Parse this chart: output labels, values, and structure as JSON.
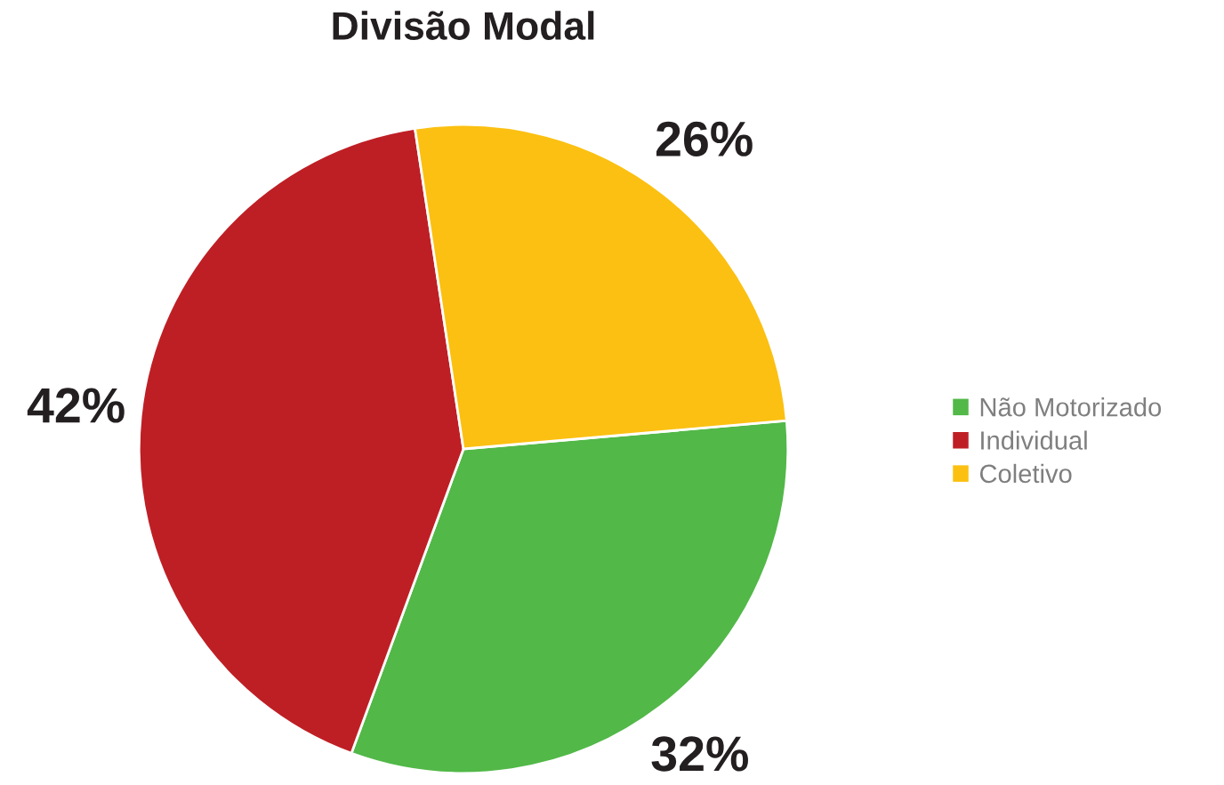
{
  "chart_data": {
    "type": "pie",
    "title": "Divisão Modal",
    "categories": [
      "Não Motorizado",
      "Individual",
      "Coletivo"
    ],
    "values": [
      32,
      42,
      26
    ],
    "colors": [
      "#52b848",
      "#be1f25",
      "#fbc011"
    ],
    "value_labels": [
      "32%",
      "42%",
      "26%"
    ],
    "legend": "right"
  }
}
